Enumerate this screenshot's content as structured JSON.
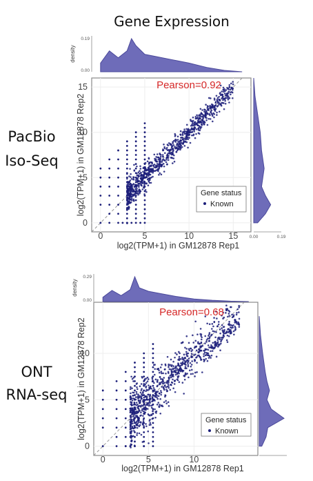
{
  "title": "Gene Expression",
  "colors": {
    "point": "#1c1f7a",
    "density_fill": "#6e6cb9",
    "density_stroke": "#4a489a",
    "pearson": "#d62828",
    "diag": "#999999"
  },
  "chart_data": [
    {
      "type": "scatter",
      "row_label_line1": "PacBio",
      "row_label_line2": "Iso-Seq",
      "pearson_label": "Pearson=0.92",
      "pearson": 0.92,
      "xlabel": "log2(TPM+1) in GM12878 Rep1",
      "ylabel": "log2(TPM+1) in GM12878 Rep2",
      "xlim": [
        -1,
        17
      ],
      "ylim": [
        -1,
        16
      ],
      "xticks": [
        0,
        5,
        10,
        15
      ],
      "yticks": [
        0,
        5,
        10,
        15
      ],
      "top_density": {
        "ylabel": "density",
        "ticks": [
          "0.19",
          "0.00"
        ],
        "max": 0.19,
        "x": [
          0,
          1,
          2,
          3,
          3.5,
          4,
          5,
          6,
          8,
          10,
          12,
          14,
          16
        ],
        "y": [
          0.05,
          0.12,
          0.08,
          0.12,
          0.19,
          0.15,
          0.1,
          0.09,
          0.07,
          0.05,
          0.025,
          0.008,
          0
        ]
      },
      "right_density": {
        "ticks": [
          "0.00",
          "0.19"
        ],
        "max": 0.19,
        "y": [
          0,
          1,
          2,
          3,
          4,
          5,
          6,
          8,
          10,
          12,
          14,
          16
        ],
        "x": [
          0.03,
          0.09,
          0.13,
          0.09,
          0.06,
          0.07,
          0.08,
          0.06,
          0.05,
          0.03,
          0.01,
          0
        ]
      },
      "legend": {
        "title": "Gene status",
        "items": [
          "Known"
        ]
      }
    },
    {
      "type": "scatter",
      "row_label_line1": "ONT",
      "row_label_line2": "RNA-seq",
      "pearson_label": "Pearson=0.68",
      "pearson": 0.68,
      "xlabel": "log2(TPM+1) in GM12878 Rep1",
      "ylabel": "log2(TPM+1) in GM12878 Rep2",
      "xlim": [
        -1,
        17
      ],
      "ylim": [
        -1,
        15.5
      ],
      "xticks": [
        0,
        5,
        10
      ],
      "yticks": [
        0,
        5,
        10
      ],
      "top_density": {
        "ylabel": "density",
        "ticks": [
          "0.29",
          "0.00"
        ],
        "max": 0.29,
        "x": [
          0,
          1,
          2,
          3,
          3.5,
          4,
          5,
          6,
          8,
          10,
          12,
          14,
          16
        ],
        "y": [
          0.05,
          0.13,
          0.07,
          0.14,
          0.29,
          0.16,
          0.12,
          0.1,
          0.06,
          0.03,
          0.015,
          0.005,
          0
        ]
      },
      "right_density": {
        "ticks": [],
        "max": 0.29,
        "y": [
          0,
          1,
          2,
          3,
          4,
          5,
          6,
          7,
          8,
          10,
          12,
          14
        ],
        "x": [
          0.03,
          0.08,
          0.1,
          0.29,
          0.14,
          0.09,
          0.12,
          0.09,
          0.07,
          0.04,
          0.015,
          0
        ]
      },
      "legend": {
        "title": "Gene status",
        "items": [
          "Known"
        ]
      }
    }
  ]
}
